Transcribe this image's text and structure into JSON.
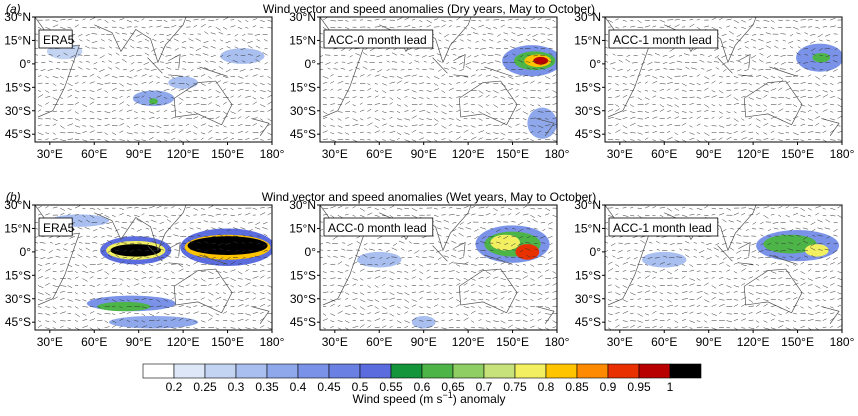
{
  "rows": [
    {
      "tag": "(a)",
      "title": "Wind vector and speed anomalies (Dry years, May to October)"
    },
    {
      "tag": "(b)",
      "title": "Wind vector and speed anomalies (Wet years, May to October)"
    }
  ],
  "panels": [
    "ERA5",
    "ACC-0 month lead",
    "ACC-1 month lead"
  ],
  "lat_ticks": [
    "30°N",
    "15°N",
    "0°",
    "15°S",
    "30°S",
    "45°S"
  ],
  "lon_ticks": [
    "30°E",
    "60°E",
    "90°E",
    "120°E",
    "150°E",
    "180°"
  ],
  "colorbar": {
    "levels": [
      0.2,
      0.25,
      0.3,
      0.35,
      0.4,
      0.45,
      0.5,
      0.55,
      0.6,
      0.65,
      0.7,
      0.75,
      0.8,
      0.85,
      0.9,
      0.95,
      1
    ],
    "colors": [
      "#ffffff",
      "#dde7f7",
      "#c3d3f2",
      "#a9bff0",
      "#8fa8ec",
      "#7a93e8",
      "#6a80e3",
      "#5a6cde",
      "#14953c",
      "#4db548",
      "#8fce62",
      "#c7e27a",
      "#f2f060",
      "#ffc400",
      "#ff8a00",
      "#e83000",
      "#b80000",
      "#000000"
    ],
    "label_parts": [
      "Wind speed (m s",
      "−1",
      ") anomaly"
    ]
  }
}
